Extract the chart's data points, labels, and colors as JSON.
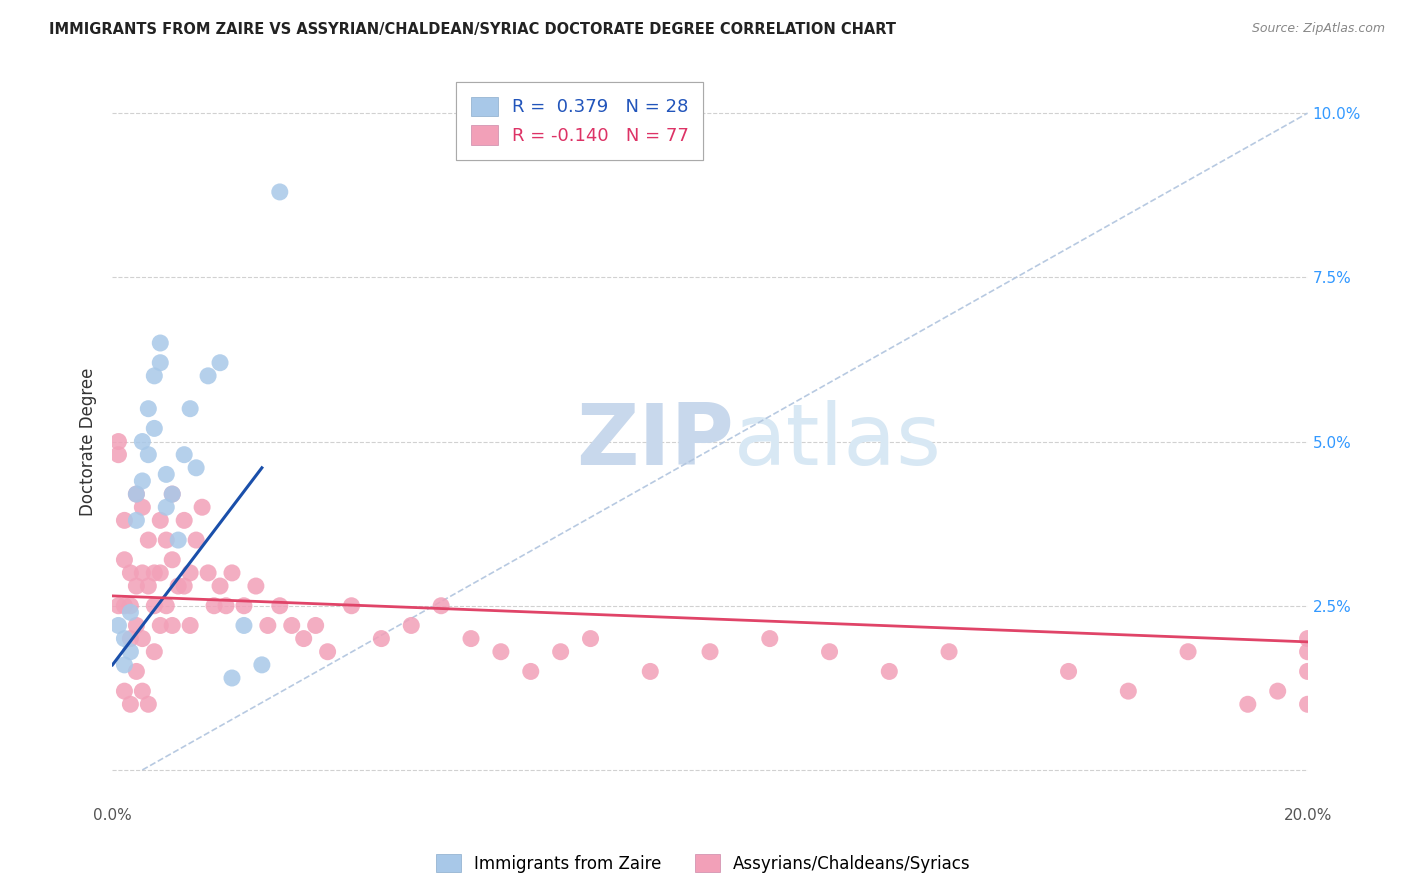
{
  "title": "IMMIGRANTS FROM ZAIRE VS ASSYRIAN/CHALDEAN/SYRIAC DOCTORATE DEGREE CORRELATION CHART",
  "source": "Source: ZipAtlas.com",
  "ylabel": "Doctorate Degree",
  "xlim": [
    0.0,
    0.2
  ],
  "ylim": [
    -0.005,
    0.105
  ],
  "legend_blue_R": "0.379",
  "legend_blue_N": "28",
  "legend_pink_R": "-0.140",
  "legend_pink_N": "77",
  "blue_color": "#a8c8e8",
  "pink_color": "#f2a0b8",
  "blue_line_color": "#1a4faa",
  "pink_line_color": "#e04468",
  "diagonal_color": "#b0c4de",
  "watermark_zip": "ZIP",
  "watermark_atlas": "atlas",
  "blue_scatter_x": [
    0.001,
    0.002,
    0.002,
    0.003,
    0.003,
    0.004,
    0.004,
    0.005,
    0.005,
    0.006,
    0.006,
    0.007,
    0.007,
    0.008,
    0.008,
    0.009,
    0.009,
    0.01,
    0.011,
    0.012,
    0.013,
    0.014,
    0.016,
    0.018,
    0.02,
    0.022,
    0.025,
    0.028
  ],
  "blue_scatter_y": [
    0.022,
    0.02,
    0.016,
    0.024,
    0.018,
    0.042,
    0.038,
    0.05,
    0.044,
    0.055,
    0.048,
    0.06,
    0.052,
    0.062,
    0.065,
    0.04,
    0.045,
    0.042,
    0.035,
    0.048,
    0.055,
    0.046,
    0.06,
    0.062,
    0.014,
    0.022,
    0.016,
    0.088
  ],
  "pink_scatter_x": [
    0.001,
    0.001,
    0.001,
    0.002,
    0.002,
    0.002,
    0.002,
    0.003,
    0.003,
    0.003,
    0.003,
    0.004,
    0.004,
    0.004,
    0.004,
    0.005,
    0.005,
    0.005,
    0.005,
    0.006,
    0.006,
    0.006,
    0.007,
    0.007,
    0.007,
    0.008,
    0.008,
    0.008,
    0.009,
    0.009,
    0.01,
    0.01,
    0.01,
    0.011,
    0.012,
    0.012,
    0.013,
    0.013,
    0.014,
    0.015,
    0.016,
    0.017,
    0.018,
    0.019,
    0.02,
    0.022,
    0.024,
    0.026,
    0.028,
    0.03,
    0.032,
    0.034,
    0.036,
    0.04,
    0.045,
    0.05,
    0.055,
    0.06,
    0.065,
    0.07,
    0.075,
    0.08,
    0.09,
    0.1,
    0.11,
    0.12,
    0.13,
    0.14,
    0.16,
    0.17,
    0.18,
    0.19,
    0.195,
    0.2,
    0.2,
    0.2,
    0.2
  ],
  "pink_scatter_y": [
    0.05,
    0.048,
    0.025,
    0.038,
    0.032,
    0.025,
    0.012,
    0.03,
    0.025,
    0.02,
    0.01,
    0.042,
    0.028,
    0.022,
    0.015,
    0.04,
    0.03,
    0.02,
    0.012,
    0.035,
    0.028,
    0.01,
    0.03,
    0.025,
    0.018,
    0.038,
    0.03,
    0.022,
    0.035,
    0.025,
    0.042,
    0.032,
    0.022,
    0.028,
    0.038,
    0.028,
    0.03,
    0.022,
    0.035,
    0.04,
    0.03,
    0.025,
    0.028,
    0.025,
    0.03,
    0.025,
    0.028,
    0.022,
    0.025,
    0.022,
    0.02,
    0.022,
    0.018,
    0.025,
    0.02,
    0.022,
    0.025,
    0.02,
    0.018,
    0.015,
    0.018,
    0.02,
    0.015,
    0.018,
    0.02,
    0.018,
    0.015,
    0.018,
    0.015,
    0.012,
    0.018,
    0.01,
    0.012,
    0.02,
    0.018,
    0.015,
    0.01
  ],
  "blue_line_x0": 0.0,
  "blue_line_x1": 0.025,
  "pink_line_x0": 0.0,
  "pink_line_x1": 0.2,
  "pink_line_y0": 0.0265,
  "pink_line_y1": 0.0195,
  "blue_line_y0": 0.016,
  "blue_line_y1": 0.046
}
